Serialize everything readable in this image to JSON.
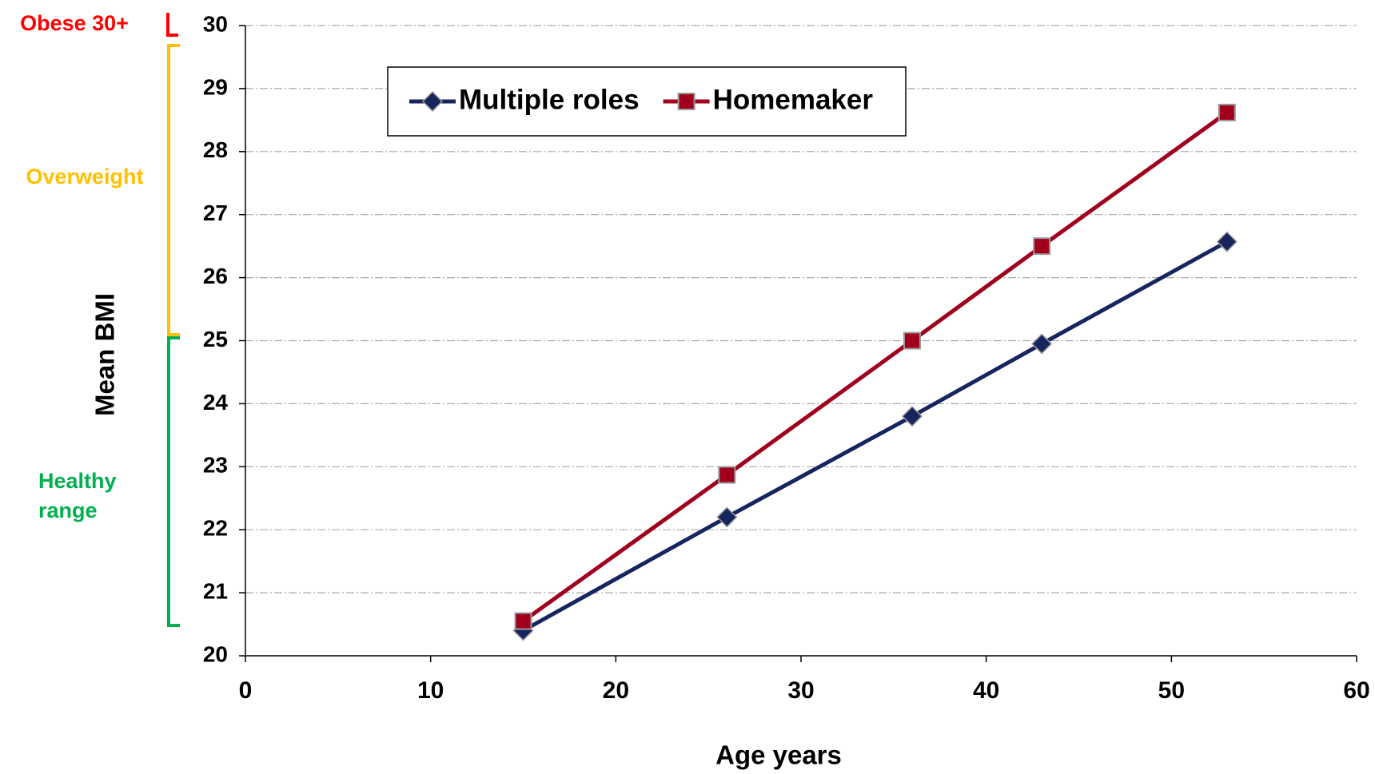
{
  "chart_data": {
    "type": "line",
    "x_label": "Age years",
    "y_label": "Mean BMI",
    "annotations": {
      "obese": "Obese 30+",
      "overweight": "Overweight",
      "healthy": [
        "Healthy",
        "range"
      ]
    },
    "xlim": [
      0,
      60
    ],
    "xticks": [
      0,
      10,
      20,
      30,
      40,
      50,
      60
    ],
    "ylim": [
      20,
      30
    ],
    "yticks": [
      20,
      21,
      22,
      23,
      24,
      25,
      26,
      27,
      28,
      29,
      30
    ],
    "grid": true,
    "legend": "top",
    "x": [
      15,
      26,
      36,
      43,
      53
    ],
    "series": [
      {
        "name": "Multiple roles",
        "color": "#17255e",
        "marker": "diamond",
        "values": [
          20.4,
          22.2,
          23.8,
          24.95,
          26.57
        ]
      },
      {
        "name": "Homemaker",
        "color": "#a0001c",
        "marker": "square",
        "values": [
          20.55,
          22.87,
          25.0,
          26.5,
          28.62
        ]
      }
    ]
  }
}
